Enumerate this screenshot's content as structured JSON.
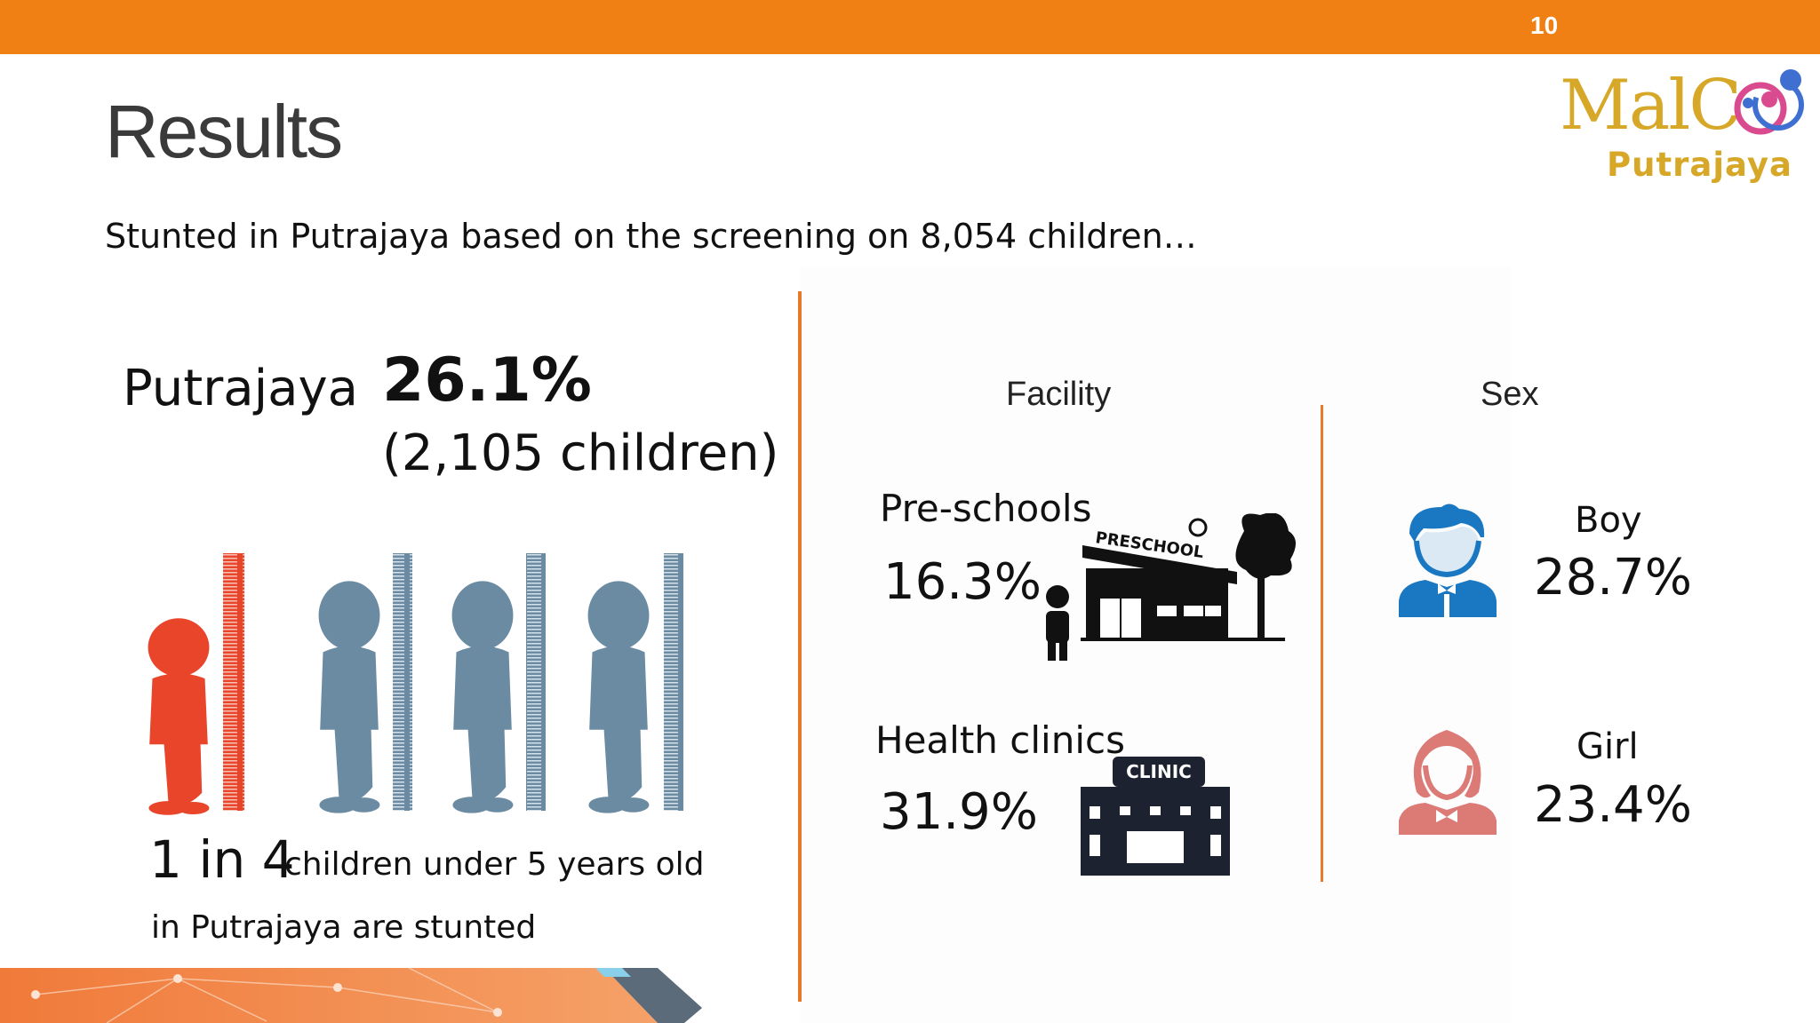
{
  "header": {
    "page_number": "10"
  },
  "logo": {
    "main_text": "MalC",
    "sub_text": "Putrajaya"
  },
  "title": "Results",
  "subtitle": "Stunted in Putrajaya based on the screening on 8,054 children…",
  "left": {
    "location": "Putrajaya",
    "percentage": "26.1%",
    "count": "(2,105 children)",
    "ratio": "1 in 4",
    "ratio_tail": "children under 5 years old",
    "ratio_line2": "in Putrajaya are stunted"
  },
  "facility": {
    "heading": "Facility",
    "items": [
      {
        "label": "Pre-schools",
        "value": "16.3%",
        "sign": "PRESCHOOL"
      },
      {
        "label": "Health clinics",
        "value": "31.9%",
        "sign": "CLINIC"
      }
    ]
  },
  "sex": {
    "heading": "Sex",
    "items": [
      {
        "label": "Boy",
        "value": "28.7%",
        "color": "#1a78c2"
      },
      {
        "label": "Girl",
        "value": "23.4%",
        "color": "#dc7a76"
      }
    ]
  },
  "colors": {
    "orange_bar": "#f08014",
    "divider": "#e7792a",
    "stunted_child": "#e9452a",
    "normal_child": "#6b8ba2",
    "logo_gold": "#d7a728"
  }
}
